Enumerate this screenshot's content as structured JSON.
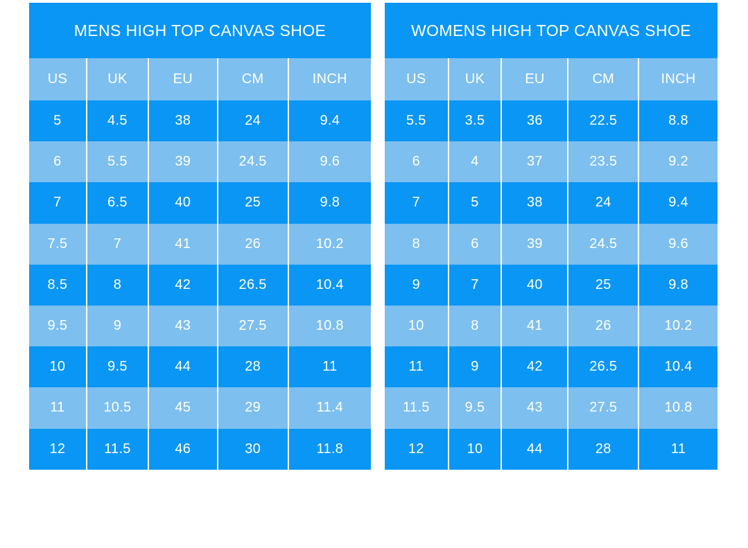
{
  "colors": {
    "primary_blue": "#0a96f5",
    "light_blue": "#7dbfee",
    "text": "#ffffff",
    "divider": "#ffffff",
    "page_background": "#ffffff"
  },
  "chart_data": [
    {
      "type": "table",
      "title": "MENS HIGH TOP CANVAS SHOE",
      "columns": [
        "US",
        "UK",
        "EU",
        "CM",
        "INCH"
      ],
      "rows": [
        [
          "5",
          "4.5",
          "38",
          "24",
          "9.4"
        ],
        [
          "6",
          "5.5",
          "39",
          "24.5",
          "9.6"
        ],
        [
          "7",
          "6.5",
          "40",
          "25",
          "9.8"
        ],
        [
          "7.5",
          "7",
          "41",
          "26",
          "10.2"
        ],
        [
          "8.5",
          "8",
          "42",
          "26.5",
          "10.4"
        ],
        [
          "9.5",
          "9",
          "43",
          "27.5",
          "10.8"
        ],
        [
          "10",
          "9.5",
          "44",
          "28",
          "11"
        ],
        [
          "11",
          "10.5",
          "45",
          "29",
          "11.4"
        ],
        [
          "12",
          "11.5",
          "46",
          "30",
          "11.8"
        ]
      ],
      "layout": {
        "row_striping": [
          "primary_blue",
          "light_blue"
        ],
        "header_background": "light_blue"
      }
    },
    {
      "type": "table",
      "title": "WOMENS HIGH TOP CANVAS SHOE",
      "columns": [
        "US",
        "UK",
        "EU",
        "CM",
        "INCH"
      ],
      "rows": [
        [
          "5.5",
          "3.5",
          "36",
          "22.5",
          "8.8"
        ],
        [
          "6",
          "4",
          "37",
          "23.5",
          "9.2"
        ],
        [
          "7",
          "5",
          "38",
          "24",
          "9.4"
        ],
        [
          "8",
          "6",
          "39",
          "24.5",
          "9.6"
        ],
        [
          "9",
          "7",
          "40",
          "25",
          "9.8"
        ],
        [
          "10",
          "8",
          "41",
          "26",
          "10.2"
        ],
        [
          "11",
          "9",
          "42",
          "26.5",
          "10.4"
        ],
        [
          "11.5",
          "9.5",
          "43",
          "27.5",
          "10.8"
        ],
        [
          "12",
          "10",
          "44",
          "28",
          "11"
        ]
      ],
      "layout": {
        "row_striping": [
          "primary_blue",
          "light_blue"
        ],
        "header_background": "light_blue"
      }
    }
  ]
}
